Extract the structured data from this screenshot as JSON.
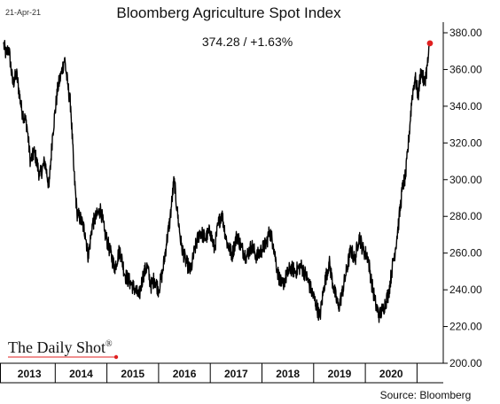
{
  "header": {
    "date": "21-Apr-21",
    "title": "Bloomberg Agriculture Spot Index",
    "subtitle": "374.28  /  +1.63%"
  },
  "branding": {
    "logo_text": "The Daily Shot",
    "registered_mark": "®"
  },
  "source": "Source: Bloomberg",
  "colors": {
    "line": "#000000",
    "marker": "#e02020",
    "axis": "#000000"
  },
  "chart_data": {
    "type": "line",
    "title": "Bloomberg Agriculture Spot Index",
    "x_categories": [
      "2013",
      "2014",
      "2015",
      "2016",
      "2017",
      "2018",
      "2019",
      "2020"
    ],
    "ylim": [
      200,
      380
    ],
    "yticks": [
      380,
      360,
      340,
      320,
      300,
      280,
      260,
      240,
      220,
      200
    ],
    "ytick_labels": [
      "380.00",
      "360.00",
      "340.00",
      "320.00",
      "300.00",
      "280.00",
      "260.00",
      "240.00",
      "220.00",
      "200.00"
    ],
    "grid": false,
    "series": [
      {
        "points": [
          [
            2013.0,
            374
          ],
          [
            2013.05,
            368
          ],
          [
            2013.1,
            372
          ],
          [
            2013.18,
            352
          ],
          [
            2013.25,
            358
          ],
          [
            2013.35,
            338
          ],
          [
            2013.45,
            330
          ],
          [
            2013.52,
            310
          ],
          [
            2013.6,
            315
          ],
          [
            2013.7,
            302
          ],
          [
            2013.8,
            310
          ],
          [
            2013.88,
            296
          ],
          [
            2013.95,
            325
          ],
          [
            2014.05,
            350
          ],
          [
            2014.12,
            358
          ],
          [
            2014.18,
            366
          ],
          [
            2014.24,
            352
          ],
          [
            2014.3,
            340
          ],
          [
            2014.36,
            305
          ],
          [
            2014.42,
            282
          ],
          [
            2014.5,
            278
          ],
          [
            2014.58,
            271
          ],
          [
            2014.64,
            258
          ],
          [
            2014.72,
            276
          ],
          [
            2014.8,
            280
          ],
          [
            2014.88,
            284
          ],
          [
            2014.95,
            272
          ],
          [
            2015.05,
            262
          ],
          [
            2015.15,
            252
          ],
          [
            2015.25,
            262
          ],
          [
            2015.35,
            248
          ],
          [
            2015.45,
            244
          ],
          [
            2015.55,
            240
          ],
          [
            2015.62,
            236
          ],
          [
            2015.7,
            248
          ],
          [
            2015.78,
            253
          ],
          [
            2015.85,
            242
          ],
          [
            2015.92,
            246
          ],
          [
            2016.0,
            240
          ],
          [
            2016.08,
            250
          ],
          [
            2016.15,
            265
          ],
          [
            2016.22,
            278
          ],
          [
            2016.3,
            300
          ],
          [
            2016.36,
            283
          ],
          [
            2016.44,
            264
          ],
          [
            2016.52,
            256
          ],
          [
            2016.62,
            250
          ],
          [
            2016.7,
            262
          ],
          [
            2016.8,
            272
          ],
          [
            2016.9,
            268
          ],
          [
            2017.0,
            272
          ],
          [
            2017.08,
            262
          ],
          [
            2017.15,
            275
          ],
          [
            2017.22,
            282
          ],
          [
            2017.32,
            266
          ],
          [
            2017.42,
            259
          ],
          [
            2017.52,
            270
          ],
          [
            2017.6,
            263
          ],
          [
            2017.7,
            258
          ],
          [
            2017.8,
            264
          ],
          [
            2017.9,
            258
          ],
          [
            2018.0,
            262
          ],
          [
            2018.08,
            265
          ],
          [
            2018.15,
            272
          ],
          [
            2018.22,
            265
          ],
          [
            2018.3,
            250
          ],
          [
            2018.38,
            242
          ],
          [
            2018.45,
            246
          ],
          [
            2018.55,
            252
          ],
          [
            2018.65,
            250
          ],
          [
            2018.75,
            253
          ],
          [
            2018.85,
            248
          ],
          [
            2018.95,
            240
          ],
          [
            2019.05,
            232
          ],
          [
            2019.12,
            225
          ],
          [
            2019.2,
            242
          ],
          [
            2019.3,
            255
          ],
          [
            2019.38,
            242
          ],
          [
            2019.48,
            230
          ],
          [
            2019.55,
            238
          ],
          [
            2019.62,
            248
          ],
          [
            2019.72,
            262
          ],
          [
            2019.8,
            256
          ],
          [
            2019.88,
            270
          ],
          [
            2019.95,
            262
          ],
          [
            2020.05,
            258
          ],
          [
            2020.12,
            244
          ],
          [
            2020.2,
            232
          ],
          [
            2020.27,
            226
          ],
          [
            2020.35,
            230
          ],
          [
            2020.45,
            238
          ],
          [
            2020.52,
            252
          ],
          [
            2020.58,
            262
          ],
          [
            2020.65,
            278
          ],
          [
            2020.72,
            296
          ],
          [
            2020.78,
            302
          ],
          [
            2020.84,
            322
          ],
          [
            2020.9,
            344
          ],
          [
            2020.96,
            356
          ],
          [
            2021.02,
            346
          ],
          [
            2021.08,
            360
          ],
          [
            2021.14,
            352
          ],
          [
            2021.2,
            362
          ],
          [
            2021.25,
            374.28
          ]
        ]
      }
    ],
    "last_value": 374.28,
    "last_change_pct": 1.63
  }
}
